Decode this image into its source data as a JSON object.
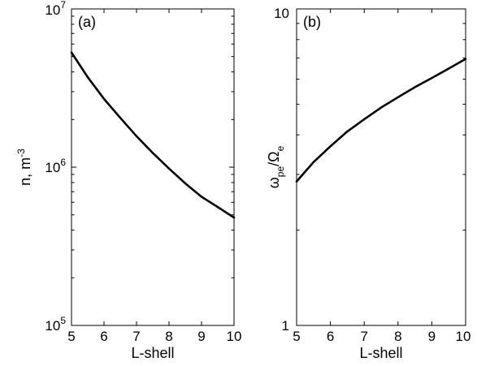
{
  "chart_data": [
    {
      "type": "line",
      "panel_label": "(a)",
      "title": "",
      "xlabel": "L-shell",
      "ylabel": "n, m",
      "ylabel_superscript": "-3",
      "yscale": "log",
      "xlim": [
        5,
        10
      ],
      "ylim": [
        100000,
        10000000
      ],
      "x_ticks": [
        "5",
        "6",
        "7",
        "8",
        "9",
        "10"
      ],
      "y_ticks": [
        {
          "value": 100000,
          "base": "10",
          "exp": "5"
        },
        {
          "value": 1000000,
          "base": "10",
          "exp": "6"
        },
        {
          "value": 10000000,
          "base": "10",
          "exp": "7"
        }
      ],
      "grid": false,
      "series": [
        {
          "x": [
            5,
            5.5,
            6,
            6.5,
            7,
            7.5,
            8,
            8.5,
            9,
            9.5,
            10
          ],
          "values": [
            5300000,
            3700000,
            2700000,
            2050000,
            1570000,
            1230000,
            980000,
            790000,
            650000,
            560000,
            480000
          ]
        }
      ]
    },
    {
      "type": "line",
      "panel_label": "(b)",
      "title": "",
      "xlabel": "L-shell",
      "ylabel_main": "ω",
      "ylabel_main_sub": "pe",
      "ylabel_sep": "/Ω",
      "ylabel_sep_sub": "e",
      "yscale": "log",
      "xlim": [
        5,
        10
      ],
      "ylim": [
        1,
        10
      ],
      "x_ticks": [
        "5",
        "6",
        "7",
        "8",
        "9",
        "10"
      ],
      "y_ticks": [
        {
          "value": 1,
          "label": "1"
        },
        {
          "value": 10,
          "label": "10"
        }
      ],
      "grid": false,
      "series": [
        {
          "x": [
            5,
            5.5,
            6,
            6.5,
            7,
            7.5,
            8,
            8.5,
            9,
            9.5,
            10
          ],
          "values": [
            2.85,
            3.28,
            3.68,
            4.1,
            4.48,
            4.88,
            5.26,
            5.66,
            6.05,
            6.48,
            6.95
          ]
        }
      ]
    }
  ]
}
